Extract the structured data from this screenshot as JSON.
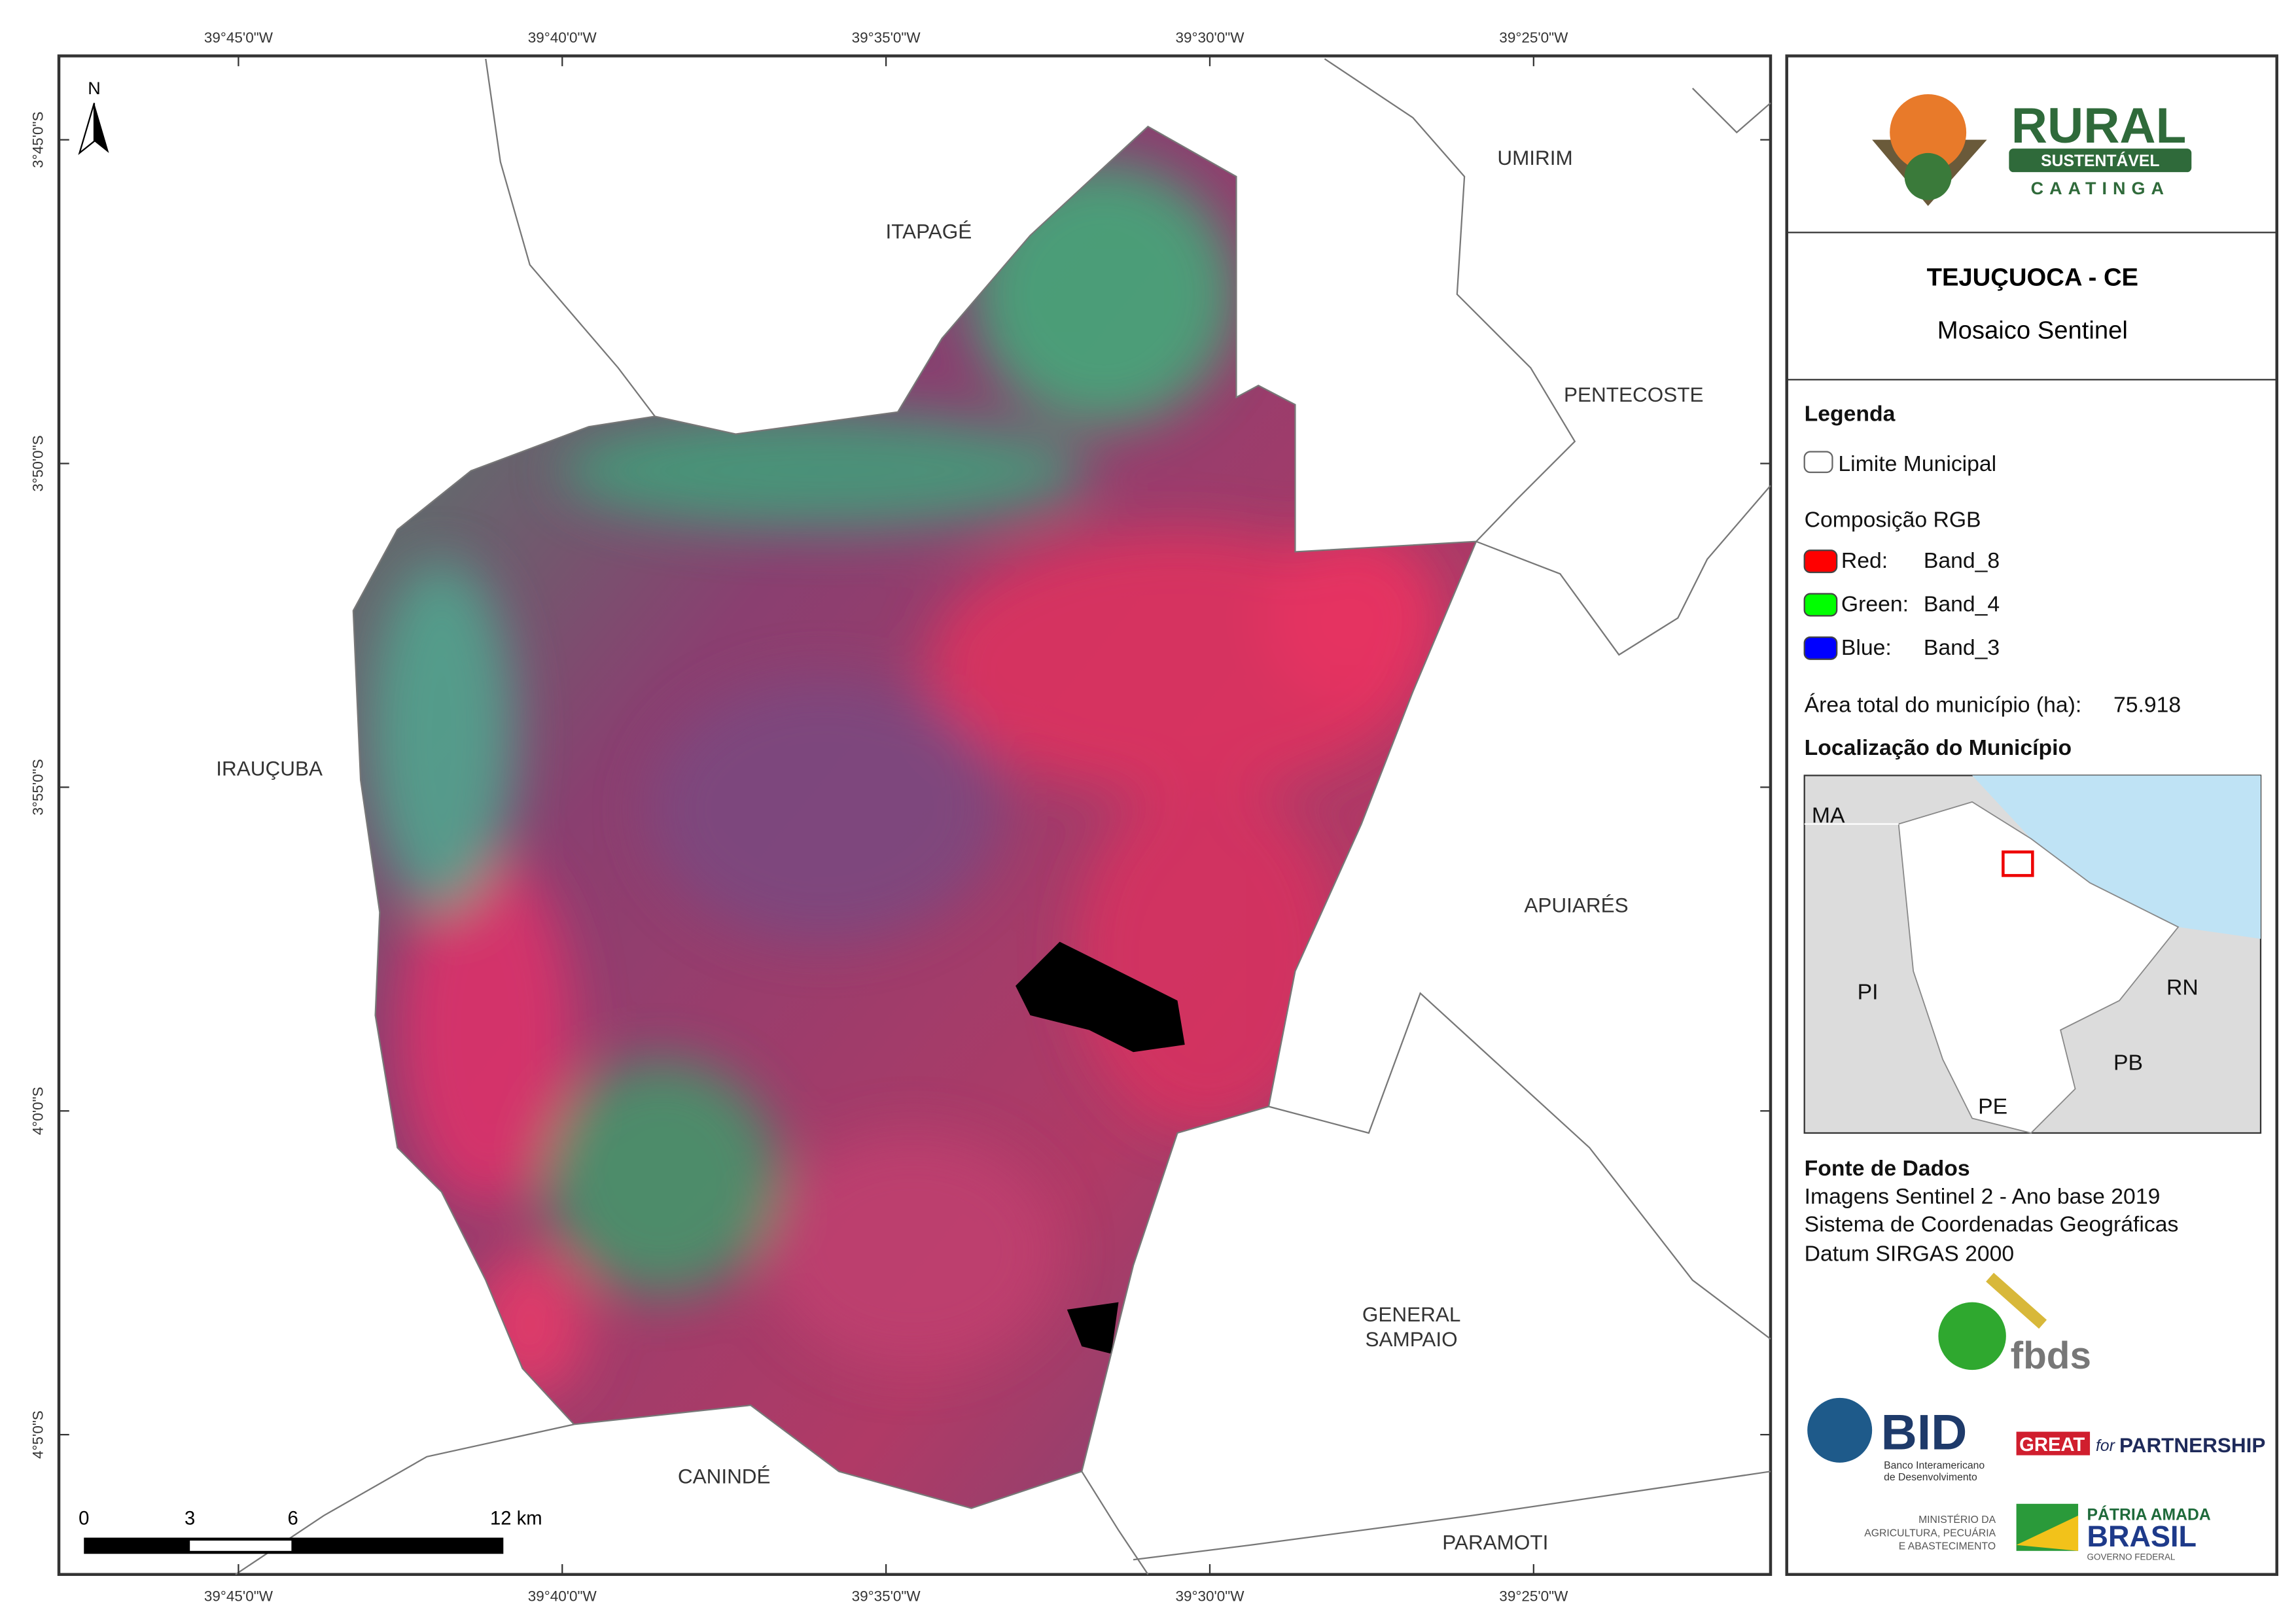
{
  "graticule": {
    "top": [
      "39°45'0\"W",
      "39°40'0\"W",
      "39°35'0\"W",
      "39°30'0\"W",
      "39°25'0\"W"
    ],
    "bottom": [
      "39°45'0\"W",
      "39°40'0\"W",
      "39°35'0\"W",
      "39°30'0\"W",
      "39°25'0\"W"
    ],
    "left": [
      "3°45'0\"S",
      "3°50'0\"S",
      "3°55'0\"S",
      "4°0'0\"S",
      "4°5'0\"S"
    ]
  },
  "map": {
    "north_arrow": "N",
    "places": [
      "ITAPAGÉ",
      "UMIRIM",
      "PENTECOSTE",
      "IRAUÇUBA",
      "APUIARÉS",
      "GENERAL",
      "SAMPAIO",
      "CANINDÉ",
      "PARAMOTI"
    ],
    "scale_bar": [
      "0",
      "3",
      "6",
      "12 km"
    ]
  },
  "panel": {
    "logo": {
      "line1": "RURAL",
      "line2": "SUSTENTÁVEL",
      "line3": "CAATINGA"
    },
    "title": "TEJUÇUOCA - CE",
    "subtitle": "Mosaico Sentinel",
    "legend": {
      "heading": "Legenda",
      "boundary": "Limite Municipal",
      "composition": "Composição RGB",
      "bands": [
        {
          "channel": "Red:",
          "band": "Band_8",
          "color": "#ff0000"
        },
        {
          "channel": "Green:",
          "band": "Band_4",
          "color": "#00ff00"
        },
        {
          "channel": "Blue:",
          "band": "Band_3",
          "color": "#0000ff"
        }
      ],
      "area_label": "Área total do município (ha):",
      "area_value": "75.918"
    },
    "locator": {
      "heading": "Localização do Município",
      "states": [
        "MA",
        "PI",
        "RN",
        "PB",
        "PE"
      ]
    },
    "sources": {
      "heading": "Fonte de Dados",
      "lines": [
        "Imagens Sentinel 2 - Ano base 2019",
        "Sistema de Coordenadas Geográficas",
        "Datum SIRGAS 2000"
      ]
    },
    "logos": {
      "fbds": "fbds",
      "bid": "BID",
      "bid_sub1": "Banco Interamericano",
      "bid_sub2": "de Desenvolvimento",
      "great": "GREAT",
      "great_for": "for",
      "great_partner": "PARTNERSHIP",
      "ministry1": "MINISTÉRIO DA",
      "ministry2": "AGRICULTURA, PECUÁRIA",
      "ministry3": "E ABASTECIMENTO",
      "brasil1": "PÁTRIA AMADA",
      "brasil2": "BRASIL",
      "brasil3": "GOVERNO FEDERAL"
    }
  }
}
